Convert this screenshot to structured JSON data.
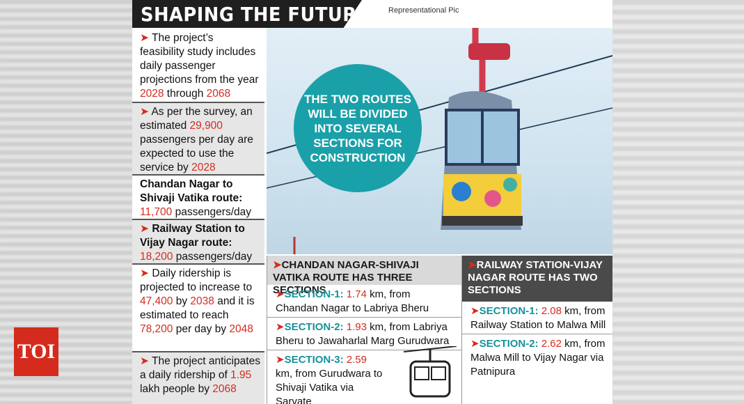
{
  "brand": {
    "logo_text": "TOI",
    "logo_color": "#d52b1e"
  },
  "header": {
    "title": "SHAPING THE FUTURE",
    "pic_credit": "Representational Pic"
  },
  "bullets": [
    {
      "pre": "The project’s feasibility study includes daily passenger projections from the year ",
      "n1": "2028",
      "mid": " through ",
      "n2": "2068",
      "post": ""
    },
    {
      "pre": "As per the survey, an estimated ",
      "n1": "29,900",
      "mid": " passengers per day are expected to use the service by ",
      "n2": "2028",
      "post": ""
    },
    {
      "route": "Chandan Nagar to Shivaji Vatika route:",
      "n1": "11,700",
      "post": " passengers/day"
    },
    {
      "route": "Railway Station to Vijay Nagar route:",
      "n1": "18,200",
      "post": " passengers/day"
    },
    {
      "pre": "Daily ridership is projected to increase to ",
      "n1": "47,400",
      "mid": " by ",
      "n2": "2038",
      "mid2": " and it is estimated to reach ",
      "n3": "78,200",
      "mid3": " per day by ",
      "n4": "2048"
    },
    {
      "pre": "The project anticipates a daily ridership of ",
      "n1": "1.95",
      "mid": " lakh people by ",
      "n2": "2068"
    }
  ],
  "circle": {
    "text": "THE TWO ROUTES WILL BE DIVIDED INTO SEVERAL SECTIONS FOR CONSTRUCTION"
  },
  "route_a": {
    "heading": "CHANDAN NAGAR-SHIVAJI VATIKA ROUTE HAS THREE SECTIONS",
    "sections": [
      {
        "label": "SECTION-1:",
        "km": "1.74",
        "text": " km, from Chandan Nagar to Labriya Bheru"
      },
      {
        "label": "SECTION-2:",
        "km": "1.93",
        "text": " km, from Labriya Bheru to Jawaharlal Marg Gurudwara"
      },
      {
        "label": "SECTION-3:",
        "km": "2.59",
        "text": " km, from Gurudwara to Shivaji Vatika via Sarvate"
      }
    ]
  },
  "route_b": {
    "heading": "RAILWAY STATION-VIJAY NAGAR ROUTE HAS TWO SECTIONS",
    "sections": [
      {
        "label": "SECTION-1:",
        "km": "2.08",
        "text": " km, from Railway Station to Malwa Mill"
      },
      {
        "label": "SECTION-2:",
        "km": "2.62",
        "text": " km, from Malwa Mill to Vijay Nagar via Patnipura"
      }
    ]
  },
  "colors": {
    "accent_red": "#d52b1e",
    "teal": "#1aa0a8",
    "header_black": "#1f1f1f"
  },
  "icons": [
    "arrow-icon",
    "cable-car-icon"
  ]
}
